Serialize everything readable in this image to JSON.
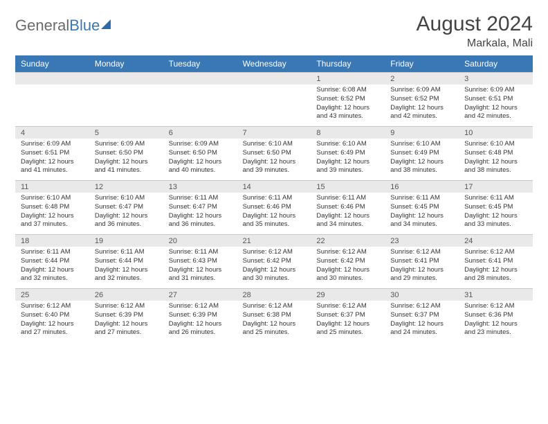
{
  "brand": {
    "part1": "General",
    "part2": "Blue"
  },
  "title": "August 2024",
  "location": "Markala, Mali",
  "colors": {
    "header_bg": "#3a78b5",
    "daynum_bg": "#e9e9e9",
    "page_bg": "#ffffff",
    "text": "#333333",
    "border": "#c8c8c8"
  },
  "day_headers": [
    "Sunday",
    "Monday",
    "Tuesday",
    "Wednesday",
    "Thursday",
    "Friday",
    "Saturday"
  ],
  "weeks": [
    [
      {
        "n": "",
        "sr": "",
        "ss": "",
        "dl": ""
      },
      {
        "n": "",
        "sr": "",
        "ss": "",
        "dl": ""
      },
      {
        "n": "",
        "sr": "",
        "ss": "",
        "dl": ""
      },
      {
        "n": "",
        "sr": "",
        "ss": "",
        "dl": ""
      },
      {
        "n": "1",
        "sr": "Sunrise: 6:08 AM",
        "ss": "Sunset: 6:52 PM",
        "dl": "Daylight: 12 hours and 43 minutes."
      },
      {
        "n": "2",
        "sr": "Sunrise: 6:09 AM",
        "ss": "Sunset: 6:52 PM",
        "dl": "Daylight: 12 hours and 42 minutes."
      },
      {
        "n": "3",
        "sr": "Sunrise: 6:09 AM",
        "ss": "Sunset: 6:51 PM",
        "dl": "Daylight: 12 hours and 42 minutes."
      }
    ],
    [
      {
        "n": "4",
        "sr": "Sunrise: 6:09 AM",
        "ss": "Sunset: 6:51 PM",
        "dl": "Daylight: 12 hours and 41 minutes."
      },
      {
        "n": "5",
        "sr": "Sunrise: 6:09 AM",
        "ss": "Sunset: 6:50 PM",
        "dl": "Daylight: 12 hours and 41 minutes."
      },
      {
        "n": "6",
        "sr": "Sunrise: 6:09 AM",
        "ss": "Sunset: 6:50 PM",
        "dl": "Daylight: 12 hours and 40 minutes."
      },
      {
        "n": "7",
        "sr": "Sunrise: 6:10 AM",
        "ss": "Sunset: 6:50 PM",
        "dl": "Daylight: 12 hours and 39 minutes."
      },
      {
        "n": "8",
        "sr": "Sunrise: 6:10 AM",
        "ss": "Sunset: 6:49 PM",
        "dl": "Daylight: 12 hours and 39 minutes."
      },
      {
        "n": "9",
        "sr": "Sunrise: 6:10 AM",
        "ss": "Sunset: 6:49 PM",
        "dl": "Daylight: 12 hours and 38 minutes."
      },
      {
        "n": "10",
        "sr": "Sunrise: 6:10 AM",
        "ss": "Sunset: 6:48 PM",
        "dl": "Daylight: 12 hours and 38 minutes."
      }
    ],
    [
      {
        "n": "11",
        "sr": "Sunrise: 6:10 AM",
        "ss": "Sunset: 6:48 PM",
        "dl": "Daylight: 12 hours and 37 minutes."
      },
      {
        "n": "12",
        "sr": "Sunrise: 6:10 AM",
        "ss": "Sunset: 6:47 PM",
        "dl": "Daylight: 12 hours and 36 minutes."
      },
      {
        "n": "13",
        "sr": "Sunrise: 6:11 AM",
        "ss": "Sunset: 6:47 PM",
        "dl": "Daylight: 12 hours and 36 minutes."
      },
      {
        "n": "14",
        "sr": "Sunrise: 6:11 AM",
        "ss": "Sunset: 6:46 PM",
        "dl": "Daylight: 12 hours and 35 minutes."
      },
      {
        "n": "15",
        "sr": "Sunrise: 6:11 AM",
        "ss": "Sunset: 6:46 PM",
        "dl": "Daylight: 12 hours and 34 minutes."
      },
      {
        "n": "16",
        "sr": "Sunrise: 6:11 AM",
        "ss": "Sunset: 6:45 PM",
        "dl": "Daylight: 12 hours and 34 minutes."
      },
      {
        "n": "17",
        "sr": "Sunrise: 6:11 AM",
        "ss": "Sunset: 6:45 PM",
        "dl": "Daylight: 12 hours and 33 minutes."
      }
    ],
    [
      {
        "n": "18",
        "sr": "Sunrise: 6:11 AM",
        "ss": "Sunset: 6:44 PM",
        "dl": "Daylight: 12 hours and 32 minutes."
      },
      {
        "n": "19",
        "sr": "Sunrise: 6:11 AM",
        "ss": "Sunset: 6:44 PM",
        "dl": "Daylight: 12 hours and 32 minutes."
      },
      {
        "n": "20",
        "sr": "Sunrise: 6:11 AM",
        "ss": "Sunset: 6:43 PM",
        "dl": "Daylight: 12 hours and 31 minutes."
      },
      {
        "n": "21",
        "sr": "Sunrise: 6:12 AM",
        "ss": "Sunset: 6:42 PM",
        "dl": "Daylight: 12 hours and 30 minutes."
      },
      {
        "n": "22",
        "sr": "Sunrise: 6:12 AM",
        "ss": "Sunset: 6:42 PM",
        "dl": "Daylight: 12 hours and 30 minutes."
      },
      {
        "n": "23",
        "sr": "Sunrise: 6:12 AM",
        "ss": "Sunset: 6:41 PM",
        "dl": "Daylight: 12 hours and 29 minutes."
      },
      {
        "n": "24",
        "sr": "Sunrise: 6:12 AM",
        "ss": "Sunset: 6:41 PM",
        "dl": "Daylight: 12 hours and 28 minutes."
      }
    ],
    [
      {
        "n": "25",
        "sr": "Sunrise: 6:12 AM",
        "ss": "Sunset: 6:40 PM",
        "dl": "Daylight: 12 hours and 27 minutes."
      },
      {
        "n": "26",
        "sr": "Sunrise: 6:12 AM",
        "ss": "Sunset: 6:39 PM",
        "dl": "Daylight: 12 hours and 27 minutes."
      },
      {
        "n": "27",
        "sr": "Sunrise: 6:12 AM",
        "ss": "Sunset: 6:39 PM",
        "dl": "Daylight: 12 hours and 26 minutes."
      },
      {
        "n": "28",
        "sr": "Sunrise: 6:12 AM",
        "ss": "Sunset: 6:38 PM",
        "dl": "Daylight: 12 hours and 25 minutes."
      },
      {
        "n": "29",
        "sr": "Sunrise: 6:12 AM",
        "ss": "Sunset: 6:37 PM",
        "dl": "Daylight: 12 hours and 25 minutes."
      },
      {
        "n": "30",
        "sr": "Sunrise: 6:12 AM",
        "ss": "Sunset: 6:37 PM",
        "dl": "Daylight: 12 hours and 24 minutes."
      },
      {
        "n": "31",
        "sr": "Sunrise: 6:12 AM",
        "ss": "Sunset: 6:36 PM",
        "dl": "Daylight: 12 hours and 23 minutes."
      }
    ]
  ]
}
